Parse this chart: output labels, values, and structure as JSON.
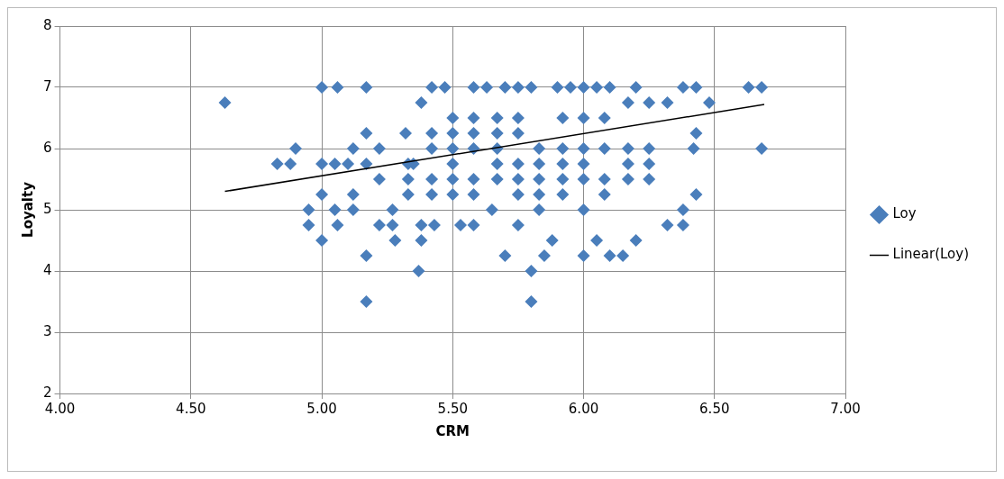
{
  "chart_data": {
    "type": "scatter",
    "xlabel": "CRM",
    "ylabel": "Loyalty",
    "xlim": [
      4,
      7
    ],
    "xticks": [
      {
        "value": 4,
        "label": "4.00"
      },
      {
        "value": 4.5,
        "label": "4.50"
      },
      {
        "value": 5,
        "label": "5.00"
      },
      {
        "value": 5.5,
        "label": "5.50"
      },
      {
        "value": 6,
        "label": "6.00"
      },
      {
        "value": 6.5,
        "label": "6.50"
      },
      {
        "value": 7,
        "label": "7.00"
      }
    ],
    "ylim": [
      2,
      8
    ],
    "yticks": [
      2,
      3,
      4,
      5,
      6,
      7,
      8
    ],
    "grid": true,
    "legend": "right",
    "series": [
      {
        "name": "Loy",
        "marker": "diamond",
        "color": "#4a7ebb",
        "x": [
          4.63,
          4.83,
          4.88,
          4.9,
          4.95,
          4.95,
          5.0,
          5.0,
          5.0,
          5.0,
          5.06,
          5.05,
          5.05,
          5.06,
          5.1,
          5.12,
          5.12,
          5.12,
          5.17,
          5.17,
          5.17,
          5.17,
          5.17,
          5.22,
          5.22,
          5.22,
          5.27,
          5.27,
          5.28,
          5.32,
          5.35,
          5.37,
          5.38,
          5.38,
          5.38,
          5.42,
          5.43,
          5.47,
          5.5,
          5.53,
          5.58,
          5.58,
          5.63,
          5.65,
          5.7,
          5.7,
          5.75,
          5.75,
          5.8,
          5.8,
          5.8,
          5.85,
          5.88,
          5.9,
          5.95,
          6.0,
          6.0,
          6.05,
          6.05,
          6.1,
          6.1,
          6.15,
          6.2,
          6.2,
          6.25,
          6.32,
          6.32,
          6.38,
          6.38,
          6.38,
          6.43,
          6.43,
          6.42,
          6.43,
          6.48,
          6.63,
          6.68,
          6.68,
          5.33,
          5.33,
          5.33,
          5.42,
          5.42,
          5.42,
          5.42,
          5.5,
          5.5,
          5.5,
          5.5,
          5.5,
          5.58,
          5.58,
          5.58,
          5.58,
          5.58,
          5.67,
          5.67,
          5.67,
          5.67,
          5.67,
          5.75,
          5.75,
          5.75,
          5.75,
          5.75,
          5.83,
          5.83,
          5.83,
          5.83,
          5.83,
          5.92,
          5.92,
          5.92,
          5.92,
          5.92,
          6.0,
          6.0,
          6.0,
          6.0,
          6.0,
          6.08,
          6.08,
          6.08,
          6.08,
          6.17,
          6.17,
          6.17,
          6.17,
          6.25,
          6.25,
          6.25
        ],
        "values": [
          6.75,
          5.75,
          5.75,
          6.0,
          5.0,
          4.75,
          4.5,
          5.25,
          5.75,
          7.0,
          7.0,
          5.75,
          5.0,
          4.75,
          5.75,
          5.0,
          5.25,
          6.0,
          7.0,
          6.25,
          5.75,
          4.25,
          3.5,
          6.0,
          5.5,
          4.75,
          5.0,
          4.75,
          4.5,
          6.25,
          5.75,
          4.0,
          4.5,
          4.75,
          6.75,
          7.0,
          4.75,
          7.0,
          6.5,
          4.75,
          4.75,
          7.0,
          7.0,
          5.0,
          4.25,
          7.0,
          4.75,
          7.0,
          4.0,
          3.5,
          7.0,
          4.25,
          4.5,
          7.0,
          7.0,
          7.0,
          4.25,
          7.0,
          4.5,
          7.0,
          4.25,
          4.25,
          4.5,
          7.0,
          6.75,
          6.75,
          4.75,
          4.75,
          5.0,
          7.0,
          7.0,
          6.25,
          6.0,
          5.25,
          6.75,
          7.0,
          7.0,
          6.0,
          5.25,
          5.5,
          5.75,
          5.25,
          5.5,
          6.0,
          6.25,
          5.25,
          5.5,
          5.75,
          6.0,
          6.25,
          5.25,
          5.5,
          6.0,
          6.25,
          6.5,
          5.5,
          5.75,
          6.0,
          6.25,
          6.5,
          5.25,
          5.5,
          5.75,
          6.25,
          6.5,
          5.0,
          5.25,
          5.5,
          5.75,
          6.0,
          5.25,
          5.5,
          5.75,
          6.0,
          6.5,
          5.0,
          5.5,
          5.75,
          6.0,
          6.5,
          5.25,
          5.5,
          6.0,
          6.5,
          5.5,
          5.75,
          6.0,
          6.75,
          5.5,
          5.75,
          6.0
        ]
      },
      {
        "name": "Linear(Loy)",
        "type": "line",
        "marker": "none",
        "color": "#000000",
        "x": [
          4.63,
          6.69
        ],
        "values": [
          5.3,
          6.72
        ]
      }
    ]
  }
}
